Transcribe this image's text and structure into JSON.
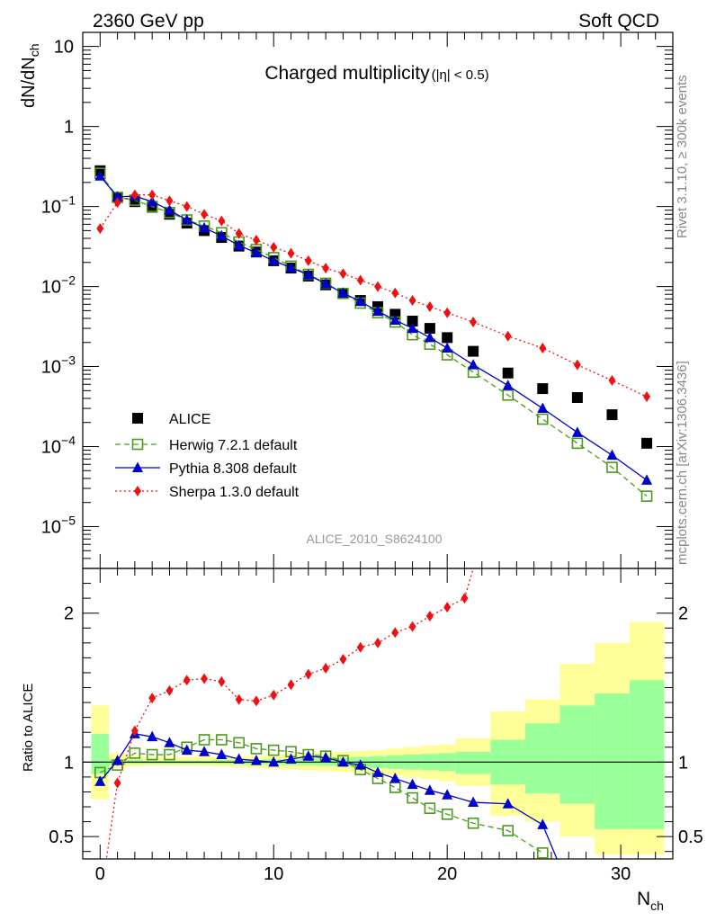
{
  "header": {
    "left": "2360 GeV pp",
    "right": "Soft QCD"
  },
  "side_labels": {
    "rivet": "Rivet 3.1.10, ≥ 300k events",
    "mcplots": "mcplots.cern.ch [arXiv:1306.3436]"
  },
  "title_main": "Charged multiplicity",
  "title_cut": "(|η| < 0.5)",
  "analysis_id": "ALICE_2010_S8624100",
  "y_label_main": "dN/dN",
  "y_label_main_sub": "ch",
  "y_label_ratio": "Ratio to ALICE",
  "x_label": "N",
  "x_label_sub": "ch",
  "colors": {
    "data": "#000000",
    "herwig": "#4c9a1c",
    "pythia": "#0000cc",
    "sherpa": "#ee1111",
    "band_inner": "#99ff99",
    "band_outer": "#ffff99"
  },
  "chart_data": [
    {
      "type": "scatter",
      "name": "main",
      "y_scale": "log",
      "xlim": [
        -1,
        33
      ],
      "ylim": [
        3e-06,
        15
      ],
      "x_ticks": [
        0,
        10,
        20,
        30
      ],
      "y_ticks": [
        {
          "v": 10,
          "label": "10"
        },
        {
          "v": 1,
          "label": "1"
        },
        {
          "v": 0.1,
          "label": "10",
          "exp": "−1"
        },
        {
          "v": 0.01,
          "label": "10",
          "exp": "−2"
        },
        {
          "v": 0.001,
          "label": "10",
          "exp": "−3"
        },
        {
          "v": 0.0001,
          "label": "10",
          "exp": "−4"
        },
        {
          "v": 1e-05,
          "label": "10",
          "exp": "−5"
        }
      ],
      "legend_position": "lower-left",
      "series": [
        {
          "name": "ALICE",
          "key": "data",
          "marker": "square-filled",
          "x": [
            0,
            1,
            2,
            3,
            4,
            5,
            6,
            7,
            8,
            9,
            10,
            11,
            12,
            13,
            14,
            15,
            16,
            17,
            18,
            19,
            20,
            21.5,
            23.5,
            25.5,
            27.5,
            29.5,
            31.5
          ],
          "y": [
            0.28,
            0.13,
            0.115,
            0.098,
            0.08,
            0.062,
            0.05,
            0.041,
            0.032,
            0.027,
            0.021,
            0.017,
            0.0135,
            0.0105,
            0.0082,
            0.0067,
            0.0056,
            0.0045,
            0.0037,
            0.003,
            0.0023,
            0.00155,
            0.00083,
            0.00053,
            0.00041,
            0.00025,
            0.00011
          ]
        },
        {
          "name": "Herwig 7.2.1 default",
          "key": "herwig",
          "marker": "square-open",
          "dash": "6,4",
          "x": [
            0,
            1,
            2,
            3,
            4,
            5,
            6,
            7,
            8,
            9,
            10,
            11,
            12,
            13,
            14,
            15,
            16,
            17,
            18,
            19,
            20,
            21.5,
            23.5,
            25.5,
            27.5,
            29.5,
            31.5
          ],
          "y": [
            0.26,
            0.13,
            0.12,
            0.1,
            0.084,
            0.068,
            0.057,
            0.047,
            0.036,
            0.029,
            0.023,
            0.018,
            0.0142,
            0.011,
            0.0082,
            0.0062,
            0.0047,
            0.0036,
            0.0025,
            0.0019,
            0.0014,
            0.00085,
            0.00044,
            0.00022,
            0.00011,
            5.5e-05,
            2.4e-05
          ]
        },
        {
          "name": "Pythia 8.308 default",
          "key": "pythia",
          "marker": "triangle-filled",
          "dash": "",
          "x": [
            0,
            1,
            2,
            3,
            4,
            5,
            6,
            7,
            8,
            9,
            10,
            11,
            12,
            13,
            14,
            15,
            16,
            17,
            18,
            19,
            20,
            21.5,
            23.5,
            25.5,
            27.5,
            29.5,
            31.5
          ],
          "y": [
            0.24,
            0.132,
            0.135,
            0.115,
            0.09,
            0.068,
            0.054,
            0.043,
            0.0325,
            0.0265,
            0.021,
            0.0172,
            0.014,
            0.0108,
            0.0083,
            0.0065,
            0.0049,
            0.0038,
            0.003,
            0.0023,
            0.0017,
            0.00105,
            0.00058,
            0.0003,
            0.00015,
            7.8e-05,
            3.8e-05
          ]
        },
        {
          "name": "Sherpa 1.3.0 default",
          "key": "sherpa",
          "marker": "diamond-filled",
          "dash": "2,3",
          "x": [
            0,
            1,
            2,
            3,
            4,
            5,
            6,
            7,
            8,
            9,
            10,
            11,
            12,
            13,
            14,
            15,
            16,
            17,
            18,
            19,
            20,
            21.5,
            23.5,
            25.5,
            27.5,
            29.5,
            31.5
          ],
          "y": [
            0.053,
            0.112,
            0.14,
            0.14,
            0.118,
            0.1,
            0.08,
            0.066,
            0.046,
            0.038,
            0.031,
            0.026,
            0.021,
            0.017,
            0.0145,
            0.012,
            0.01,
            0.0083,
            0.0067,
            0.0056,
            0.0047,
            0.0036,
            0.0024,
            0.0017,
            0.00105,
            0.00067,
            0.00042
          ]
        }
      ]
    },
    {
      "type": "line",
      "name": "ratio",
      "xlim": [
        -1,
        33
      ],
      "ylim": [
        0.35,
        2.3
      ],
      "x_ticks": [
        0,
        10,
        20,
        30
      ],
      "y_ticks": [
        {
          "v": 0.5,
          "label": "0.5"
        },
        {
          "v": 1,
          "label": "1"
        },
        {
          "v": 2,
          "label": "2"
        }
      ],
      "reference_line": 1,
      "bands": {
        "edges": [
          -0.5,
          0.5,
          1.5,
          2.5,
          3.5,
          4.5,
          5.5,
          6.5,
          7.5,
          8.5,
          9.5,
          10.5,
          11.5,
          12.5,
          13.5,
          14.5,
          15.5,
          16.5,
          17.5,
          18.5,
          19.5,
          20.5,
          22.5,
          24.5,
          26.5,
          28.5,
          30.5,
          32.5
        ],
        "outer_low": [
          0.75,
          0.96,
          0.97,
          0.975,
          0.975,
          0.975,
          0.975,
          0.97,
          0.965,
          0.96,
          0.955,
          0.95,
          0.945,
          0.94,
          0.935,
          0.93,
          0.92,
          0.91,
          0.895,
          0.885,
          0.87,
          0.84,
          0.64,
          0.6,
          0.5,
          0.38,
          0.38
        ],
        "outer_high": [
          1.38,
          1.06,
          1.04,
          1.035,
          1.035,
          1.035,
          1.035,
          1.035,
          1.04,
          1.04,
          1.05,
          1.055,
          1.06,
          1.065,
          1.07,
          1.075,
          1.08,
          1.09,
          1.1,
          1.11,
          1.12,
          1.16,
          1.34,
          1.42,
          1.66,
          1.8,
          1.94
        ],
        "inner_low": [
          0.92,
          0.985,
          0.99,
          0.99,
          0.99,
          0.99,
          0.99,
          0.99,
          0.985,
          0.985,
          0.985,
          0.98,
          0.98,
          0.975,
          0.97,
          0.965,
          0.96,
          0.955,
          0.95,
          0.945,
          0.94,
          0.92,
          0.85,
          0.79,
          0.72,
          0.55,
          0.55
        ],
        "inner_high": [
          1.19,
          1.02,
          1.015,
          1.01,
          1.01,
          1.01,
          1.01,
          1.015,
          1.015,
          1.015,
          1.02,
          1.02,
          1.025,
          1.03,
          1.03,
          1.035,
          1.04,
          1.045,
          1.05,
          1.055,
          1.06,
          1.07,
          1.15,
          1.26,
          1.38,
          1.46,
          1.55
        ]
      },
      "series": [
        {
          "key": "herwig",
          "marker": "square-open",
          "dash": "6,4",
          "x": [
            0,
            1,
            2,
            3,
            4,
            5,
            6,
            7,
            8,
            9,
            10,
            11,
            12,
            13,
            14,
            15,
            16,
            17,
            18,
            19,
            20,
            21.5,
            23.5,
            25.5
          ],
          "y": [
            0.93,
            0.98,
            1.06,
            1.05,
            1.05,
            1.1,
            1.15,
            1.15,
            1.13,
            1.09,
            1.08,
            1.07,
            1.05,
            1.04,
            1.01,
            0.95,
            0.89,
            0.83,
            0.76,
            0.69,
            0.65,
            0.59,
            0.54,
            0.39
          ]
        },
        {
          "key": "pythia",
          "marker": "triangle-filled",
          "dash": "",
          "x": [
            0,
            1,
            2,
            3,
            4,
            5,
            6,
            7,
            8,
            9,
            10,
            11,
            12,
            13,
            14,
            15,
            16,
            17,
            18,
            19,
            20,
            21.5,
            23.5,
            25.5,
            26.5
          ],
          "y": [
            0.87,
            1.01,
            1.19,
            1.17,
            1.13,
            1.08,
            1.07,
            1.05,
            1.02,
            1.01,
            1.0,
            1.02,
            1.04,
            1.03,
            1.0,
            0.98,
            0.93,
            0.89,
            0.85,
            0.81,
            0.78,
            0.73,
            0.72,
            0.58,
            0.3
          ]
        },
        {
          "key": "sherpa",
          "marker": "diamond-filled",
          "dash": "2,3",
          "x": [
            0.3,
            1,
            2,
            3,
            4,
            5,
            6,
            7,
            8,
            9,
            10,
            11,
            12,
            13,
            14,
            15,
            16,
            17,
            18,
            19,
            20,
            21,
            21.5
          ],
          "y": [
            0.3,
            0.86,
            1.21,
            1.43,
            1.48,
            1.55,
            1.56,
            1.54,
            1.42,
            1.41,
            1.45,
            1.52,
            1.59,
            1.63,
            1.69,
            1.77,
            1.8,
            1.87,
            1.91,
            1.98,
            2.04,
            2.1,
            2.3
          ]
        }
      ]
    }
  ]
}
